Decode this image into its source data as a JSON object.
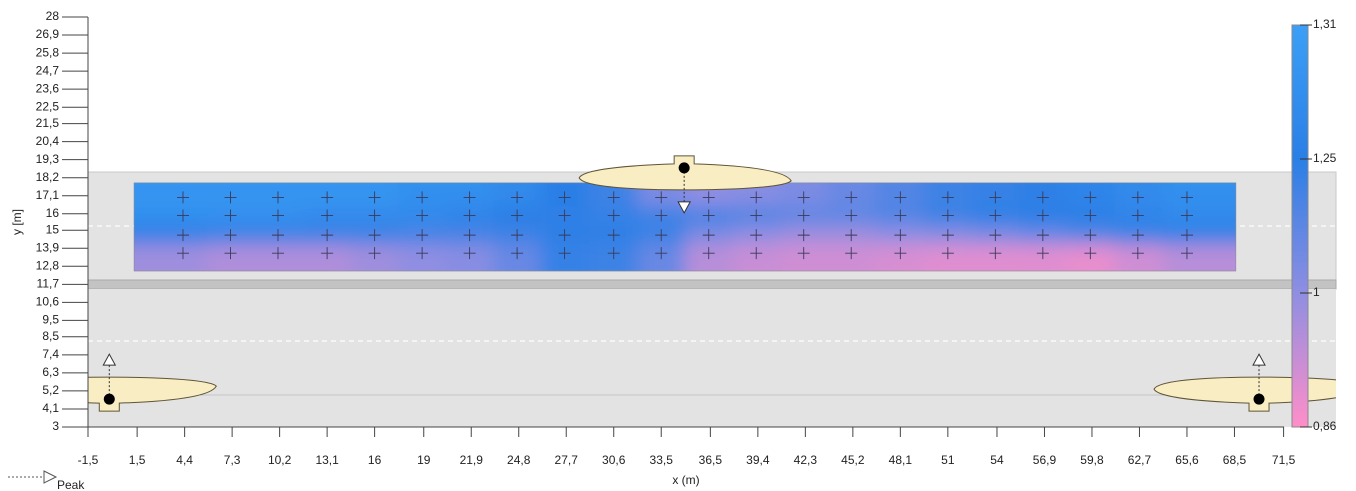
{
  "chart_data": {
    "type": "heatmap",
    "xlabel": "x (m)",
    "ylabel": "y [m]",
    "xlim": [
      -1.5,
      74.7
    ],
    "ylim": [
      3,
      28
    ],
    "xticks": [
      {
        "value": -1.5,
        "label": "-1,5"
      },
      {
        "value": 1.5,
        "label": "1,5"
      },
      {
        "value": 4.4,
        "label": "4,4"
      },
      {
        "value": 7.3,
        "label": "7,3"
      },
      {
        "value": 10.2,
        "label": "10,2"
      },
      {
        "value": 13.1,
        "label": "13,1"
      },
      16,
      19,
      {
        "value": 21.9,
        "label": "21,9"
      },
      {
        "value": 24.8,
        "label": "24,8"
      },
      {
        "value": 27.7,
        "label": "27,7"
      },
      {
        "value": 30.6,
        "label": "30,6"
      },
      {
        "value": 33.5,
        "label": "33,5"
      },
      {
        "value": 36.5,
        "label": "36,5"
      },
      {
        "value": 39.4,
        "label": "39,4"
      },
      {
        "value": 42.3,
        "label": "42,3"
      },
      {
        "value": 45.2,
        "label": "45,2"
      },
      {
        "value": 48.1,
        "label": "48,1"
      },
      51,
      54,
      {
        "value": 56.9,
        "label": "56,9"
      },
      {
        "value": 59.8,
        "label": "59,8"
      },
      {
        "value": 62.7,
        "label": "62,7"
      },
      {
        "value": 65.6,
        "label": "65,6"
      },
      {
        "value": 68.5,
        "label": "68,5"
      },
      {
        "value": 71.5,
        "label": "71,5"
      }
    ],
    "yticks": [
      28,
      {
        "value": 26.9,
        "label": "26,9"
      },
      {
        "value": 25.8,
        "label": "25,8"
      },
      {
        "value": 24.7,
        "label": "24,7"
      },
      {
        "value": 23.6,
        "label": "23,6"
      },
      {
        "value": 22.5,
        "label": "22,5"
      },
      {
        "value": 21.5,
        "label": "21,5"
      },
      {
        "value": 20.4,
        "label": "20,4"
      },
      {
        "value": 19.3,
        "label": "19,3"
      },
      {
        "value": 18.2,
        "label": "18,2"
      },
      {
        "value": 17.1,
        "label": "17,1"
      },
      16,
      15,
      {
        "value": 13.9,
        "label": "13,9"
      },
      {
        "value": 12.8,
        "label": "12,8"
      },
      {
        "value": 11.7,
        "label": "11,7"
      },
      {
        "value": 10.6,
        "label": "10,6"
      },
      {
        "value": 9.5,
        "label": "9,5"
      },
      {
        "value": 8.5,
        "label": "8,5"
      },
      {
        "value": 7.4,
        "label": "7,4"
      },
      {
        "value": 6.3,
        "label": "6,3"
      },
      {
        "value": 5.2,
        "label": "5,2"
      },
      {
        "value": 4.1,
        "label": "4,1"
      },
      3
    ],
    "calc_area": {
      "x": [
        1.3,
        68.6
      ],
      "y": [
        12.5,
        17.9
      ]
    },
    "grid_x": [
      4.3,
      7.2,
      10.1,
      13.1,
      16.0,
      18.9,
      21.8,
      24.7,
      27.6,
      30.6,
      33.5,
      36.4,
      39.3,
      42.2,
      45.1,
      48.1,
      51.0,
      53.9,
      56.8,
      59.7,
      62.6,
      65.6
    ],
    "grid_y": [
      17.0,
      15.9,
      14.7,
      13.6
    ],
    "values": [
      [
        1.29,
        1.29,
        1.29,
        1.29,
        1.29,
        1.28,
        1.28,
        1.27,
        1.25,
        1.2,
        1.05,
        1.0,
        1.02,
        1.05,
        1.1,
        1.15,
        1.2,
        1.22,
        1.24,
        1.26,
        1.27,
        1.28
      ],
      [
        1.28,
        1.28,
        1.28,
        1.27,
        1.27,
        1.27,
        1.26,
        1.25,
        1.24,
        1.22,
        1.2,
        1.18,
        1.15,
        1.12,
        1.12,
        1.15,
        1.2,
        1.24,
        1.25,
        1.25,
        1.26,
        1.27
      ],
      [
        1.22,
        1.2,
        1.2,
        1.2,
        1.2,
        1.18,
        1.18,
        1.2,
        1.24,
        1.24,
        1.2,
        1.05,
        1.0,
        0.98,
        0.98,
        1.0,
        1.02,
        1.05,
        1.1,
        1.15,
        1.2,
        1.22
      ],
      [
        0.98,
        0.96,
        0.96,
        0.96,
        0.98,
        1.0,
        1.02,
        1.1,
        1.22,
        1.2,
        1.1,
        0.95,
        0.93,
        0.92,
        0.92,
        0.91,
        0.9,
        0.9,
        0.9,
        0.89,
        0.92,
        0.95
      ]
    ],
    "colorbar": {
      "ticks": [
        {
          "value": 1.31,
          "label": "1,31"
        },
        {
          "value": 1.25,
          "label": "1,25"
        },
        1,
        {
          "value": 0.86,
          "label": "0,86"
        }
      ],
      "colors": [
        "#3c9ff6",
        "#2a7fe6",
        "#8f8ee2",
        "#ff8ec9"
      ]
    },
    "luminaires": [
      {
        "x": 34.9,
        "y": 18.8,
        "facing": "down"
      },
      {
        "x": -0.2,
        "y": 4.7,
        "facing": "up"
      },
      {
        "x": 70.0,
        "y": 4.7,
        "facing": "up"
      }
    ],
    "legend": "Peak"
  }
}
